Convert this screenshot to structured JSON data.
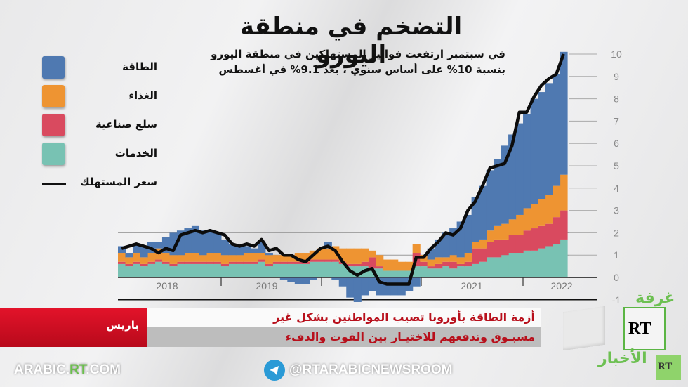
{
  "header": {
    "title": "التضخم في منطقة اليورو",
    "subtitle_line1": "في سبتمبر  ارتفعت فواتير المستهلكين في منطقة اليورو",
    "subtitle_line2": "بنسبة 10% على أساس سنوي ، بعد 9.1% في أغسطس"
  },
  "legend": {
    "items": [
      {
        "label": "الطاقة",
        "color": "#4f79b1"
      },
      {
        "label": "الغذاء",
        "color": "#ee9432"
      },
      {
        "label": "سلع صناعية",
        "color": "#d94a5f"
      },
      {
        "label": "الخدمات",
        "color": "#78c2b3"
      }
    ],
    "line_label": "سعر المستهلك",
    "line_color": "#111111"
  },
  "chart_data": {
    "type": "area",
    "title": "التضخم في منطقة اليورو",
    "subtitle": "في سبتمبر ارتفعت فواتير المستهلكين في منطقة اليورو بنسبة 10% على أساس سنوي ، بعد 9.1% في أغسطس",
    "xlabel": "",
    "ylabel": "",
    "ylim": [
      -1,
      10
    ],
    "yticks": [
      -1,
      0,
      1,
      2,
      3,
      4,
      5,
      6,
      7,
      8,
      9,
      10
    ],
    "xtick_labels": [
      "2018",
      "2019",
      "2021",
      "2022"
    ],
    "grid": true,
    "legend_position": "left",
    "stacked": true,
    "x": [
      "2017-09",
      "2017-10",
      "2017-11",
      "2017-12",
      "2018-01",
      "2018-02",
      "2018-03",
      "2018-04",
      "2018-05",
      "2018-06",
      "2018-07",
      "2018-08",
      "2018-09",
      "2018-10",
      "2018-11",
      "2018-12",
      "2019-01",
      "2019-02",
      "2019-03",
      "2019-04",
      "2019-05",
      "2019-06",
      "2019-07",
      "2019-08",
      "2019-09",
      "2019-10",
      "2019-11",
      "2019-12",
      "2020-01",
      "2020-02",
      "2020-03",
      "2020-04",
      "2020-05",
      "2020-06",
      "2020-07",
      "2020-08",
      "2020-09",
      "2020-10",
      "2020-11",
      "2020-12",
      "2021-01",
      "2021-02",
      "2021-03",
      "2021-04",
      "2021-05",
      "2021-06",
      "2021-07",
      "2021-08",
      "2021-09",
      "2021-10",
      "2021-11",
      "2021-12",
      "2022-01",
      "2022-02",
      "2022-03",
      "2022-04",
      "2022-05",
      "2022-06",
      "2022-07",
      "2022-08",
      "2022-09"
    ],
    "series": [
      {
        "name": "الخدمات",
        "values": [
          0.6,
          0.5,
          0.6,
          0.5,
          0.6,
          0.7,
          0.6,
          0.5,
          0.6,
          0.6,
          0.6,
          0.6,
          0.6,
          0.6,
          0.5,
          0.6,
          0.6,
          0.6,
          0.6,
          0.7,
          0.5,
          0.6,
          0.6,
          0.6,
          0.6,
          0.6,
          0.7,
          0.7,
          0.7,
          0.7,
          0.6,
          0.5,
          0.5,
          0.5,
          0.4,
          0.4,
          0.3,
          0.3,
          0.3,
          0.3,
          0.5,
          0.5,
          0.4,
          0.4,
          0.5,
          0.4,
          0.5,
          0.5,
          0.6,
          0.7,
          0.9,
          0.9,
          1.0,
          1.1,
          1.1,
          1.2,
          1.2,
          1.3,
          1.4,
          1.5,
          1.7
        ]
      },
      {
        "name": "سلع صناعية",
        "values": [
          0.1,
          0.1,
          0.1,
          0.1,
          0.1,
          0.1,
          0.1,
          0.1,
          0.1,
          0.1,
          0.1,
          0.1,
          0.1,
          0.1,
          0.1,
          0.1,
          0.1,
          0.1,
          0.1,
          0.1,
          0.1,
          0.1,
          0.1,
          0.1,
          0.1,
          0.1,
          0.1,
          0.1,
          0.1,
          0.1,
          0.1,
          0.1,
          0.1,
          0.2,
          0.5,
          0.1,
          0.0,
          0.0,
          0.0,
          0.0,
          0.6,
          0.2,
          0.1,
          0.2,
          0.2,
          0.3,
          0.1,
          0.2,
          0.7,
          0.6,
          0.7,
          0.8,
          0.7,
          0.8,
          0.8,
          0.9,
          1.0,
          1.0,
          1.0,
          1.2,
          1.3
        ]
      },
      {
        "name": "الغذاء",
        "values": [
          0.4,
          0.3,
          0.4,
          0.3,
          0.4,
          0.5,
          0.4,
          0.4,
          0.3,
          0.4,
          0.4,
          0.3,
          0.4,
          0.4,
          0.4,
          0.3,
          0.3,
          0.4,
          0.4,
          0.3,
          0.4,
          0.3,
          0.3,
          0.3,
          0.4,
          0.4,
          0.4,
          0.5,
          0.5,
          0.6,
          0.6,
          0.7,
          0.7,
          0.6,
          0.3,
          0.5,
          0.5,
          0.5,
          0.4,
          0.4,
          0.4,
          0.3,
          0.3,
          0.3,
          0.2,
          0.3,
          0.3,
          0.4,
          0.3,
          0.4,
          0.5,
          0.6,
          0.7,
          0.7,
          0.9,
          1.0,
          1.1,
          1.2,
          1.3,
          1.4,
          1.6
        ]
      },
      {
        "name": "الطاقة",
        "values": [
          0.3,
          0.2,
          0.4,
          0.5,
          0.5,
          0.3,
          0.7,
          1.0,
          1.1,
          1.1,
          1.2,
          1.1,
          1.0,
          0.9,
          0.7,
          0.5,
          0.4,
          0.3,
          0.2,
          0.5,
          0.1,
          0.0,
          -0.1,
          -0.2,
          -0.3,
          -0.3,
          -0.1,
          0.0,
          0.3,
          -0.1,
          -0.4,
          -0.9,
          -1.1,
          -0.8,
          -0.6,
          -0.8,
          -0.8,
          -0.8,
          -0.8,
          -0.6,
          -0.4,
          0.0,
          0.5,
          0.8,
          1.1,
          1.2,
          1.6,
          1.7,
          2.0,
          2.4,
          2.7,
          3.0,
          3.5,
          3.8,
          4.1,
          4.2,
          4.7,
          4.8,
          5.0,
          5.0,
          5.5
        ]
      }
    ],
    "line_series": {
      "name": "سعر المستهلك",
      "values": [
        1.3,
        1.4,
        1.5,
        1.4,
        1.3,
        1.1,
        1.3,
        1.2,
        1.9,
        2.0,
        2.1,
        2.0,
        2.1,
        2.0,
        1.9,
        1.5,
        1.4,
        1.5,
        1.4,
        1.7,
        1.2,
        1.3,
        1.0,
        1.0,
        0.8,
        0.7,
        1.0,
        1.3,
        1.4,
        1.2,
        0.7,
        0.3,
        0.1,
        0.3,
        0.4,
        -0.2,
        -0.3,
        -0.3,
        -0.3,
        -0.3,
        0.9,
        0.9,
        1.3,
        1.6,
        2.0,
        1.9,
        2.2,
        3.0,
        3.4,
        4.1,
        4.9,
        5.0,
        5.1,
        5.9,
        7.4,
        7.4,
        8.1,
        8.6,
        8.9,
        9.1,
        10.0
      ]
    }
  },
  "ticker": {
    "city": "باريس",
    "line1": "أزمة الطاقة بأوروبا تصيب المواطنين بشكل غير",
    "line2": "مسبـوق وتدفعهم للاختيـار بين القوت والدفء"
  },
  "footer": {
    "site_prefix": "ARABIC.",
    "site_rt": "RT",
    "site_suffix": ".COM",
    "telegram_handle": "@RTARABICNEWSROOM",
    "telegram_color": "#2a9ad6"
  },
  "logo": {
    "rt_main": "RT",
    "rt_small": "RT",
    "word_top": "غرفة",
    "word_bottom": "الأخبار",
    "accent_color": "#6dc052"
  }
}
